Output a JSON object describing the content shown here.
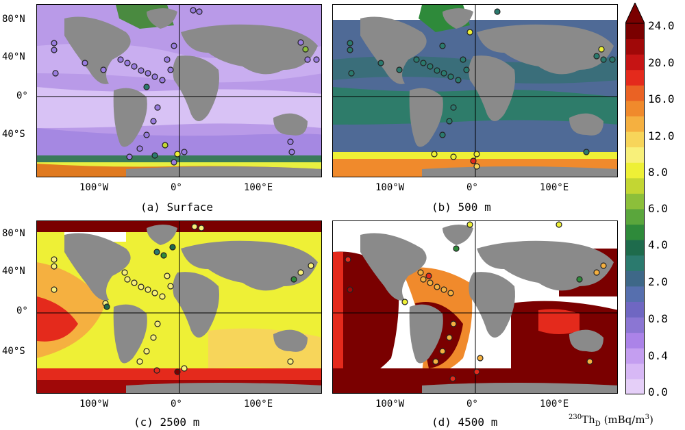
{
  "panels": [
    {
      "id": "a",
      "caption": "(a) Surface",
      "lon_ticks": [
        "100°W",
        "0°",
        "100°E"
      ],
      "lat_ticks": [
        "80°N",
        "40°N",
        "0°",
        "40°S"
      ]
    },
    {
      "id": "b",
      "caption": "(b) 500 m",
      "lon_ticks": [
        "100°W",
        "0°",
        "100°E"
      ],
      "lat_ticks": []
    },
    {
      "id": "c",
      "caption": "(c) 2500 m",
      "lon_ticks": [
        "100°W",
        "0°",
        "100°E"
      ],
      "lat_ticks": [
        "80°N",
        "40°N",
        "0°",
        "40°S"
      ]
    },
    {
      "id": "d",
      "caption": "(d) 4500 m",
      "lon_ticks": [
        "100°W",
        "0°",
        "100°E"
      ],
      "lat_ticks": []
    }
  ],
  "colorbar": {
    "labels": [
      "24.0",
      "20.0",
      "16.0",
      "12.0",
      "8.0",
      "6.0",
      "4.0",
      "2.0",
      "0.8",
      "0.4",
      "0.0"
    ],
    "colors": [
      "#e5cff8",
      "#d7b8f5",
      "#c49ef0",
      "#ab83e8",
      "#8b76d3",
      "#6f67c2",
      "#566fae",
      "#3e6888",
      "#2b7a6e",
      "#1e6b4c",
      "#2e8a3a",
      "#5aa63c",
      "#8cbf3a",
      "#c3d633",
      "#eef036",
      "#f8f07a",
      "#f7d55a",
      "#f5b040",
      "#f08a2c",
      "#ea6224",
      "#e42a1c",
      "#c61414",
      "#a00808",
      "#7a0000"
    ],
    "title_base": "230",
    "title_sym": "Th",
    "title_sub": "D",
    "title_units": "(mBq/m",
    "title_units_sup": "3",
    "title_units_end": ")"
  }
}
